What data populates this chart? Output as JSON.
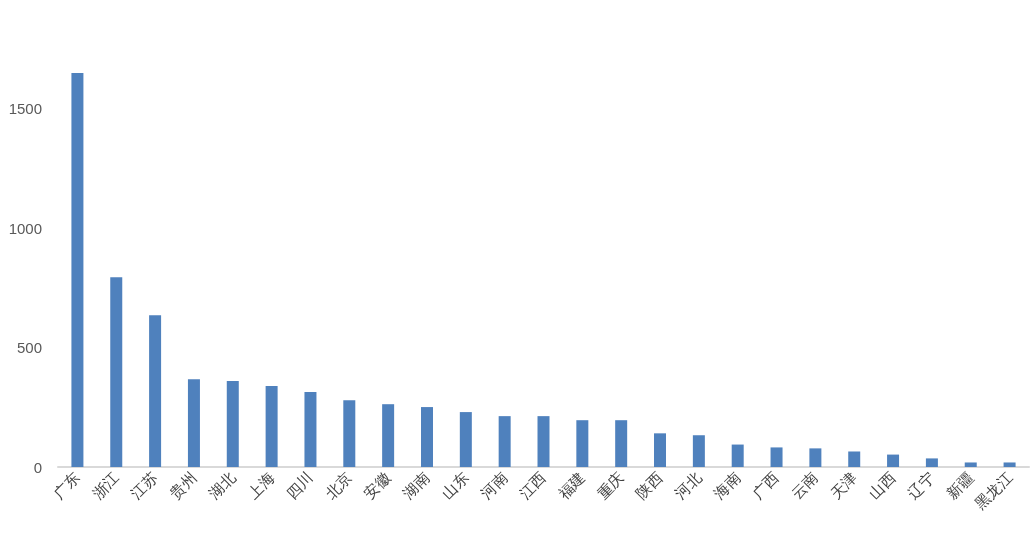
{
  "chart_data": {
    "type": "bar",
    "categories": [
      "广东",
      "浙江",
      "江苏",
      "贵州",
      "湖北",
      "上海",
      "四川",
      "北京",
      "安徽",
      "湖南",
      "山东",
      "河南",
      "江西",
      "福建",
      "重庆",
      "陕西",
      "河北",
      "海南",
      "广西",
      "云南",
      "天津",
      "山西",
      "辽宁",
      "新疆",
      "黑龙江"
    ],
    "values": [
      1650,
      795,
      636,
      368,
      360,
      339,
      314,
      280,
      263,
      251,
      230,
      213,
      213,
      196,
      196,
      141,
      133,
      94,
      82,
      78,
      65,
      52,
      36,
      19,
      19
    ],
    "color": "#4f81bd",
    "ylim": [
      0,
      1650
    ],
    "yticks": [
      0,
      500,
      1000,
      1500
    ]
  }
}
